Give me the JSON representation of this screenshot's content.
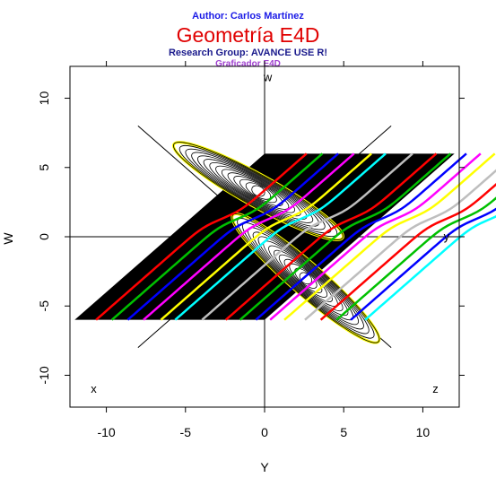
{
  "header": {
    "author": "Author: Carlos Martínez",
    "title": "Geometría E4D",
    "research_group": "Research Group: AVANCE USE R!",
    "subtitle": "Graficador E4D"
  },
  "chart_data": {
    "type": "line",
    "xlabel": "Y",
    "ylabel": "W",
    "xlim": [
      -12.3,
      12.3
    ],
    "ylim": [
      -12.3,
      12.3
    ],
    "x_ticks": [
      -10,
      -5,
      0,
      5,
      10
    ],
    "y_ticks": [
      -10,
      -5,
      0,
      5,
      10
    ],
    "x_tick_labels": [
      "-10",
      "-5",
      "0",
      "5",
      "10"
    ],
    "y_tick_labels": [
      "-10",
      "-5",
      "0",
      "5",
      "10"
    ],
    "grid": false,
    "axis_letters": [
      {
        "text": "w",
        "x": 0.2,
        "y": 11.5
      },
      {
        "text": "y",
        "x": 11.5,
        "y": 0
      },
      {
        "text": "x",
        "x": -10.8,
        "y": -11.0
      },
      {
        "text": "z",
        "x": 10.8,
        "y": -11.0
      }
    ],
    "reference_axes": [
      {
        "name": "w-axis",
        "x": [
          0,
          0
        ],
        "y": [
          -12.3,
          12.3
        ]
      },
      {
        "name": "y-axis",
        "x": [
          -12.3,
          12.3
        ],
        "y": [
          0,
          0
        ]
      },
      {
        "name": "x-axis",
        "x": [
          8,
          -8
        ],
        "y": [
          8,
          -8
        ]
      },
      {
        "name": "z-axis",
        "x": [
          -8,
          8
        ],
        "y": [
          8,
          -8
        ]
      }
    ],
    "band": {
      "fill": "#000000",
      "bottom_y": -6,
      "top_y": 6,
      "x_start": -12,
      "x_end": 0
    },
    "bands_profile": {
      "step_center_x": 5.7,
      "step_half_width": 0.9,
      "step_height": 2.6
    },
    "curve_colors": [
      "#ff0000",
      "#00c000",
      "#0000ff",
      "#ff00ff",
      "#ffff00",
      "#00ffff",
      "#bebebe"
    ],
    "band_curves": [
      {
        "color": "#ff0000",
        "offset": -10.0
      },
      {
        "color": "#00c000",
        "offset": -9.0
      },
      {
        "color": "#0000ff",
        "offset": -8.0
      },
      {
        "color": "#ff00ff",
        "offset": -7.0
      },
      {
        "color": "#ffff00",
        "offset": -5.9
      },
      {
        "color": "#00ffff",
        "offset": -5.0
      },
      {
        "color": "#bebebe",
        "offset": -3.3
      },
      {
        "color": "#ff0000",
        "offset": -1.8
      },
      {
        "color": "#00c000",
        "offset": -0.9
      },
      {
        "color": "#0000ff",
        "offset": 0.1
      },
      {
        "color": "#ff00ff",
        "offset": 1.0
      },
      {
        "color": "#ffff00",
        "offset": 1.9
      },
      {
        "color": "#bebebe",
        "offset": 3.2
      },
      {
        "color": "#ff0000",
        "offset": 4.2
      },
      {
        "color": "#00c000",
        "offset": 5.2
      },
      {
        "color": "#0000ff",
        "offset": 6.1
      },
      {
        "color": "#00ffff",
        "offset": 7.0
      }
    ],
    "lobes": [
      {
        "name": "upper-left-lobe",
        "center": [
          -0.4,
          3.3
        ],
        "half_length": 6.1,
        "half_width": 1.0,
        "angle_deg": -29
      },
      {
        "name": "lower-right-lobe",
        "center": [
          2.6,
          -3.0
        ],
        "half_length": 6.1,
        "half_width": 1.0,
        "angle_deg": -41
      }
    ]
  }
}
